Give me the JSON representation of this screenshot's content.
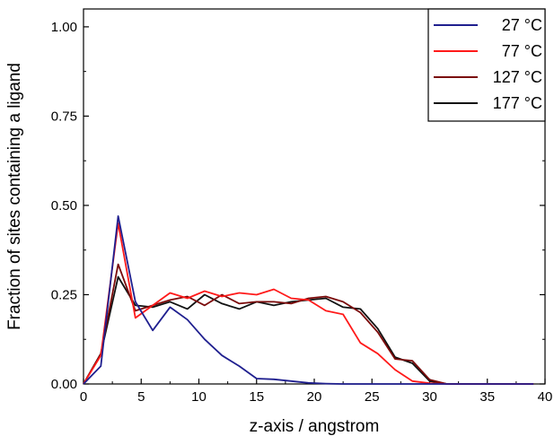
{
  "chart_data": {
    "type": "line",
    "title": "",
    "xlabel": "z-axis / angstrom",
    "ylabel": "Fraction of sites containing a ligand",
    "xlim": [
      0,
      40
    ],
    "ylim": [
      0,
      1.05
    ],
    "xticks": [
      0,
      5,
      10,
      15,
      20,
      25,
      30,
      35,
      40
    ],
    "xtick_labels": [
      "0",
      "5",
      "10",
      "15",
      "20",
      "25",
      "30",
      "35",
      "40"
    ],
    "yticks": [
      0,
      0.25,
      0.5,
      0.75,
      1.0
    ],
    "ytick_labels": [
      "0.00",
      "0.25",
      "0.50",
      "0.75",
      "1.00"
    ],
    "grid": false,
    "legend_position": "top-right",
    "series": [
      {
        "name": "27 °C",
        "color": "#1f1f8f",
        "x": [
          0,
          1.5,
          3,
          4.5,
          6,
          7.5,
          9,
          10.5,
          12,
          13.5,
          15,
          16.5,
          18,
          19.5,
          21,
          22.5,
          24,
          25.5,
          27,
          28.5,
          30,
          31.5,
          33,
          34.5,
          36,
          37.5,
          39
        ],
        "y": [
          0,
          0.05,
          0.47,
          0.23,
          0.15,
          0.215,
          0.18,
          0.125,
          0.08,
          0.05,
          0.015,
          0.013,
          0.008,
          0.003,
          0.001,
          0,
          0,
          0,
          0,
          0,
          0,
          0,
          0,
          0,
          0,
          0,
          0
        ]
      },
      {
        "name": "77 °C",
        "color": "#ff1a1a",
        "x": [
          0,
          1.5,
          3,
          4.5,
          6,
          7.5,
          9,
          10.5,
          12,
          13.5,
          15,
          16.5,
          18,
          19.5,
          21,
          22.5,
          24,
          25.5,
          27,
          28.5,
          30,
          31.5,
          33,
          34.5,
          36,
          37.5,
          39
        ],
        "y": [
          0,
          0.08,
          0.45,
          0.185,
          0.22,
          0.255,
          0.24,
          0.26,
          0.245,
          0.255,
          0.25,
          0.265,
          0.24,
          0.235,
          0.205,
          0.195,
          0.115,
          0.085,
          0.04,
          0.008,
          0.002,
          0,
          0,
          0,
          0,
          0,
          0
        ]
      },
      {
        "name": "127 °C",
        "color": "#7a0a0a",
        "x": [
          0,
          1.5,
          3,
          4.5,
          6,
          7.5,
          9,
          10.5,
          12,
          13.5,
          15,
          16.5,
          18,
          19.5,
          21,
          22.5,
          24,
          25.5,
          27,
          28.5,
          30,
          31.5,
          33,
          34.5,
          36,
          37.5,
          39
        ],
        "y": [
          0,
          0.085,
          0.335,
          0.205,
          0.22,
          0.235,
          0.245,
          0.22,
          0.25,
          0.225,
          0.23,
          0.23,
          0.225,
          0.24,
          0.245,
          0.23,
          0.2,
          0.145,
          0.07,
          0.065,
          0.012,
          0,
          0,
          0,
          0,
          0,
          0
        ]
      },
      {
        "name": "177 °C",
        "color": "#111111",
        "x": [
          0,
          1.5,
          3,
          4.5,
          6,
          7.5,
          9,
          10.5,
          12,
          13.5,
          15,
          16.5,
          18,
          19.5,
          21,
          22.5,
          24,
          25.5,
          27,
          28.5,
          30,
          31.5,
          33,
          34.5,
          36,
          37.5,
          39
        ],
        "y": [
          0,
          0.085,
          0.3,
          0.22,
          0.215,
          0.23,
          0.21,
          0.25,
          0.225,
          0.21,
          0.23,
          0.22,
          0.23,
          0.235,
          0.24,
          0.215,
          0.21,
          0.155,
          0.075,
          0.058,
          0.008,
          0,
          0,
          0,
          0,
          0,
          0
        ]
      }
    ]
  }
}
